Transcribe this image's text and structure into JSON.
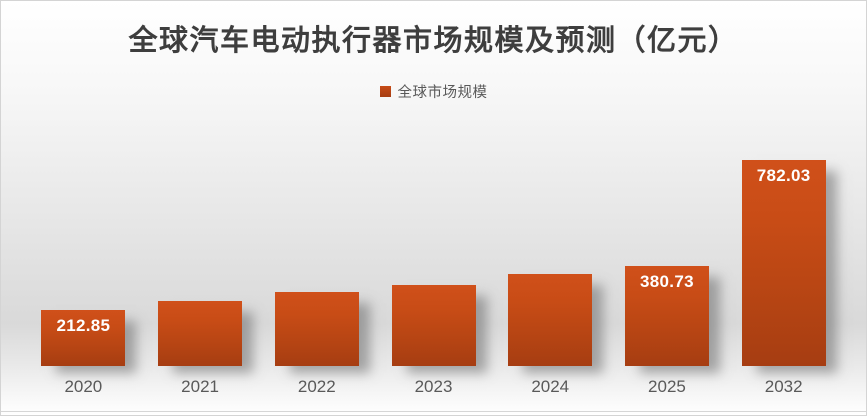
{
  "title": "全球汽车电动执行器市场规模及预测（亿元）",
  "legend": {
    "label": "全球市场规模",
    "swatch_color": "#b6431a"
  },
  "chart_data": {
    "type": "bar",
    "title": "全球汽车电动执行器市场规模及预测（亿元）",
    "legend_entries": [
      "全球市场规模"
    ],
    "legend_position": "top-center",
    "categories": [
      "2020",
      "2021",
      "2022",
      "2023",
      "2024",
      "2025",
      "2032"
    ],
    "series": [
      {
        "name": "全球市场规模",
        "values": [
          212.85,
          247,
          282,
          308,
          351,
          380.73,
          782.03
        ],
        "estimated": [
          false,
          true,
          true,
          true,
          true,
          false,
          false
        ]
      }
    ],
    "data_labels": [
      "212.85",
      "",
      "",
      "",
      "",
      "380.73",
      "782.03"
    ],
    "xlabel": "",
    "ylabel": "",
    "ylim": [
      0,
      800
    ],
    "grid": false,
    "axis_visible": false,
    "bar_color": "#c04a16",
    "bar_gradient": [
      "#d0501a",
      "#a63d12"
    ],
    "background_gradient": [
      "#ffffff",
      "#d9d9d9",
      "#ffffff"
    ],
    "title_color": "#3e3e3e",
    "axis_text_color": "#595959",
    "data_label_color": "#ffffff"
  }
}
